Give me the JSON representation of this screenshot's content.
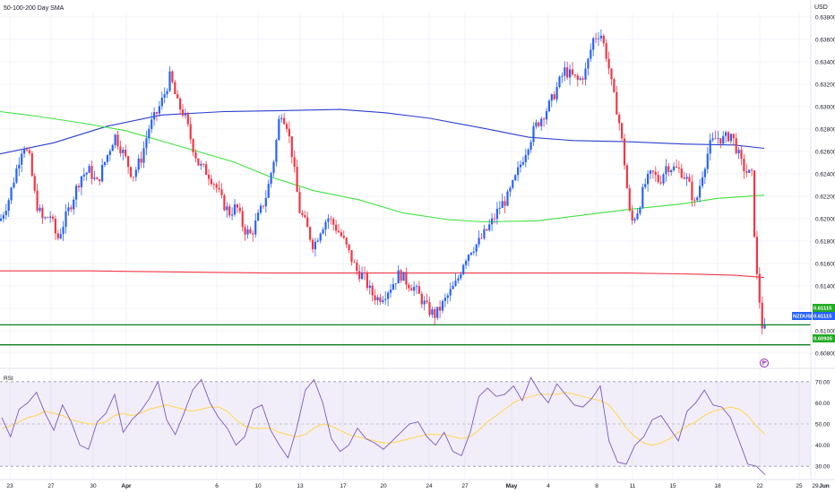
{
  "chart_data": {
    "type": "candlestick",
    "title": "50-100-200 Day SMA",
    "currency": "USD",
    "y_axis": {
      "min": 0.6078,
      "max": 0.6392,
      "ticks": [
        "0.63800",
        "0.63600",
        "0.63400",
        "0.63200",
        "0.63000",
        "0.62800",
        "0.62600",
        "0.62400",
        "0.62200",
        "0.62000",
        "0.61800",
        "0.61600",
        "0.61400",
        "0.61200",
        "0.61000",
        "0.60800"
      ]
    },
    "x_axis": {
      "ticks": [
        "23",
        "27",
        "30",
        "Apr",
        "6",
        "10",
        "13",
        "17",
        "20",
        "24",
        "27",
        "May",
        "4",
        "8",
        "11",
        "15",
        "18",
        "22",
        "25",
        "29",
        "Jun"
      ]
    },
    "price_series": {
      "symbol": "NZDUSD",
      "anchors": [
        [
          0,
          0.6205
        ],
        [
          10,
          0.6225
        ],
        [
          18,
          0.625
        ],
        [
          26,
          0.6275
        ],
        [
          33,
          0.626
        ],
        [
          40,
          0.6222
        ],
        [
          48,
          0.6205
        ],
        [
          56,
          0.621
        ],
        [
          64,
          0.6188
        ],
        [
          72,
          0.6205
        ],
        [
          80,
          0.6222
        ],
        [
          90,
          0.6245
        ],
        [
          100,
          0.625
        ],
        [
          108,
          0.6238
        ],
        [
          118,
          0.626
        ],
        [
          128,
          0.6282
        ],
        [
          138,
          0.6265
        ],
        [
          148,
          0.6245
        ],
        [
          158,
          0.6262
        ],
        [
          166,
          0.6288
        ],
        [
          174,
          0.63
        ],
        [
          182,
          0.6315
        ],
        [
          190,
          0.6335
        ],
        [
          198,
          0.631
        ],
        [
          206,
          0.63
        ],
        [
          214,
          0.6275
        ],
        [
          222,
          0.6255
        ],
        [
          232,
          0.6248
        ],
        [
          240,
          0.6238
        ],
        [
          248,
          0.6222
        ],
        [
          256,
          0.6212
        ],
        [
          264,
          0.6218
        ],
        [
          272,
          0.6198
        ],
        [
          280,
          0.6192
        ],
        [
          290,
          0.6212
        ],
        [
          298,
          0.623
        ],
        [
          306,
          0.6262
        ],
        [
          313,
          0.6305
        ],
        [
          320,
          0.6292
        ],
        [
          326,
          0.6265
        ],
        [
          334,
          0.6215
        ],
        [
          342,
          0.62
        ],
        [
          350,
          0.6182
        ],
        [
          358,
          0.6198
        ],
        [
          366,
          0.6208
        ],
        [
          374,
          0.62
        ],
        [
          382,
          0.619
        ],
        [
          390,
          0.6175
        ],
        [
          398,
          0.616
        ],
        [
          406,
          0.6155
        ],
        [
          414,
          0.614
        ],
        [
          422,
          0.6135
        ],
        [
          430,
          0.614
        ],
        [
          438,
          0.6148
        ],
        [
          446,
          0.6158
        ],
        [
          454,
          0.615
        ],
        [
          462,
          0.6145
        ],
        [
          470,
          0.6135
        ],
        [
          478,
          0.6125
        ],
        [
          486,
          0.612
        ],
        [
          494,
          0.613
        ],
        [
          502,
          0.614
        ],
        [
          510,
          0.615
        ],
        [
          518,
          0.617
        ],
        [
          526,
          0.618
        ],
        [
          534,
          0.6185
        ],
        [
          542,
          0.6195
        ],
        [
          550,
          0.6205
        ],
        [
          558,
          0.6218
        ],
        [
          566,
          0.6225
        ],
        [
          574,
          0.624
        ],
        [
          582,
          0.6258
        ],
        [
          590,
          0.6275
        ],
        [
          598,
          0.629
        ],
        [
          606,
          0.63
        ],
        [
          614,
          0.631
        ],
        [
          622,
          0.6325
        ],
        [
          630,
          0.634
        ],
        [
          638,
          0.6335
        ],
        [
          646,
          0.633
        ],
        [
          654,
          0.634
        ],
        [
          662,
          0.6368
        ],
        [
          670,
          0.6375
        ],
        [
          678,
          0.635
        ],
        [
          684,
          0.632
        ],
        [
          690,
          0.63
        ],
        [
          696,
          0.6265
        ],
        [
          704,
          0.6202
        ],
        [
          712,
          0.6215
        ],
        [
          720,
          0.6238
        ],
        [
          728,
          0.6248
        ],
        [
          736,
          0.624
        ],
        [
          744,
          0.6255
        ],
        [
          752,
          0.6252
        ],
        [
          760,
          0.625
        ],
        [
          768,
          0.624
        ],
        [
          776,
          0.6218
        ],
        [
          784,
          0.6248
        ],
        [
          792,
          0.6272
        ],
        [
          800,
          0.628
        ],
        [
          808,
          0.6278
        ],
        [
          816,
          0.6283
        ],
        [
          822,
          0.627
        ],
        [
          828,
          0.6255
        ],
        [
          834,
          0.6248
        ],
        [
          840,
          0.6245
        ],
        [
          843,
          0.617
        ],
        [
          846,
          0.6145
        ],
        [
          849,
          0.6125
        ],
        [
          852,
          0.61
        ],
        [
          855,
          0.6112
        ]
      ]
    },
    "sma_lines": [
      {
        "period": 50,
        "color": "#2a3fd1",
        "points": [
          [
            0,
            0.6265
          ],
          [
            60,
            0.6275
          ],
          [
            120,
            0.629
          ],
          [
            180,
            0.63
          ],
          [
            250,
            0.6303
          ],
          [
            320,
            0.6304
          ],
          [
            380,
            0.6305
          ],
          [
            430,
            0.6302
          ],
          [
            480,
            0.6297
          ],
          [
            540,
            0.6288
          ],
          [
            590,
            0.628
          ],
          [
            640,
            0.6277
          ],
          [
            700,
            0.6276
          ],
          [
            760,
            0.6274
          ],
          [
            820,
            0.6273
          ],
          [
            853,
            0.627
          ]
        ]
      },
      {
        "period": 100,
        "color": "#3fe23f",
        "points": [
          [
            0,
            0.6303
          ],
          [
            40,
            0.6299
          ],
          [
            90,
            0.6293
          ],
          [
            140,
            0.6286
          ],
          [
            200,
            0.6272
          ],
          [
            260,
            0.6258
          ],
          [
            300,
            0.6245
          ],
          [
            350,
            0.6232
          ],
          [
            400,
            0.6224
          ],
          [
            450,
            0.6212
          ],
          [
            500,
            0.6206
          ],
          [
            540,
            0.6204
          ],
          [
            600,
            0.6205
          ],
          [
            650,
            0.621
          ],
          [
            700,
            0.6215
          ],
          [
            760,
            0.622
          ],
          [
            800,
            0.6225
          ],
          [
            853,
            0.6228
          ]
        ]
      },
      {
        "period": 200,
        "color": "#f23645",
        "points": [
          [
            0,
            0.616
          ],
          [
            100,
            0.616
          ],
          [
            200,
            0.6159
          ],
          [
            300,
            0.6158
          ],
          [
            400,
            0.6158
          ],
          [
            500,
            0.6158
          ],
          [
            600,
            0.6158
          ],
          [
            700,
            0.6158
          ],
          [
            780,
            0.6157
          ],
          [
            820,
            0.6156
          ],
          [
            853,
            0.6154
          ]
        ]
      }
    ],
    "horizontal_levels": [
      {
        "value": 0.61115,
        "label": "0.61115",
        "color": "#0b7f1f"
      },
      {
        "value": 0.60935,
        "label": "0.60935",
        "color": "#0b7f1f"
      }
    ],
    "price_tags": [
      {
        "text": "0.61115",
        "color": "#22ab22"
      },
      {
        "symbol": "NZDUSD",
        "text": "0.61115",
        "color": "#2962ff"
      },
      {
        "text": "0.60935",
        "color": "#22ab22"
      }
    ],
    "rsi": {
      "title": "RSI",
      "ticks": [
        "70.00",
        "60.00",
        "50.00",
        "40.00",
        "30.00"
      ],
      "upper": 70,
      "lower": 30,
      "range": [
        25,
        75
      ],
      "rsi_values": [
        53,
        44,
        57,
        60,
        65,
        55,
        47,
        59,
        51,
        40,
        38,
        51,
        55,
        64,
        46,
        52,
        56,
        62,
        70,
        52,
        45,
        55,
        66,
        71,
        60,
        53,
        48,
        40,
        44,
        57,
        59,
        47,
        40,
        34,
        48,
        66,
        71,
        60,
        43,
        37,
        40,
        48,
        43,
        41,
        38,
        42,
        46,
        50,
        51,
        44,
        40,
        46,
        37,
        35,
        46,
        63,
        67,
        63,
        64,
        68,
        61,
        72,
        65,
        60,
        69,
        64,
        59,
        58,
        62,
        68,
        42,
        32,
        31,
        40,
        44,
        52,
        54,
        48,
        42,
        56,
        60,
        66,
        59,
        58,
        53,
        42,
        31,
        30,
        26
      ],
      "ma_values": [
        48,
        49,
        51,
        53,
        54,
        56,
        55,
        54,
        52,
        51,
        50,
        50,
        51,
        54,
        55,
        54,
        55,
        57,
        58,
        59,
        58,
        57,
        56,
        57,
        58,
        58,
        56,
        52,
        49,
        48,
        48,
        48,
        46,
        45,
        44,
        45,
        48,
        50,
        49,
        47,
        45,
        44,
        43,
        42,
        41,
        41,
        42,
        43,
        44,
        45,
        45,
        45,
        44,
        43,
        44,
        47,
        51,
        54,
        57,
        60,
        62,
        63,
        64,
        64,
        64,
        65,
        64,
        63,
        62,
        61,
        59,
        54,
        48,
        44,
        41,
        40,
        41,
        43,
        46,
        49,
        51,
        54,
        56,
        57,
        58,
        57,
        54,
        49,
        45
      ]
    },
    "marker": "flag-icon"
  }
}
